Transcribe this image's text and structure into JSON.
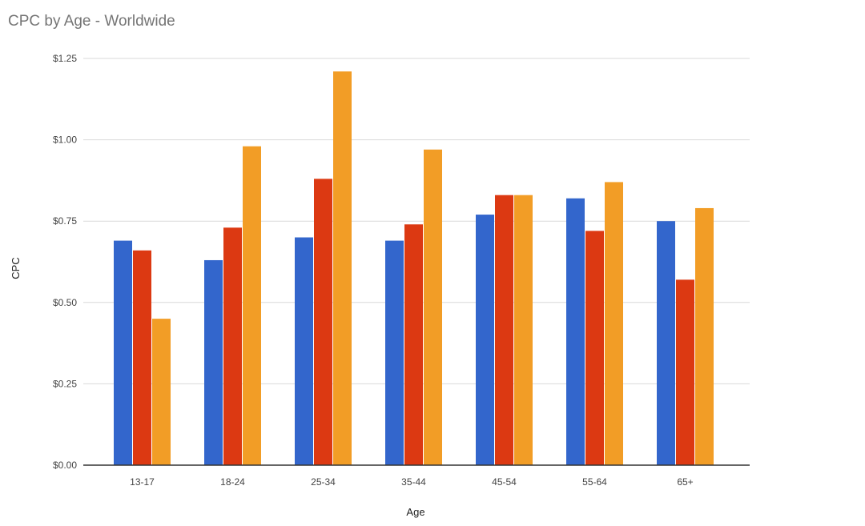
{
  "chart_data": {
    "type": "bar",
    "title": "CPC by Age - Worldwide",
    "xlabel": "Age",
    "ylabel": "CPC",
    "categories": [
      "13-17",
      "18-24",
      "25-34",
      "35-44",
      "45-54",
      "55-64",
      "65+"
    ],
    "y_ticks": [
      "$0.00",
      "$0.25",
      "$0.50",
      "$0.75",
      "$1.00",
      "$1.25"
    ],
    "ylim": [
      0,
      1.25
    ],
    "grid": true,
    "legend": "none",
    "series": [
      {
        "color": "#3366CC",
        "values": [
          0.69,
          0.63,
          0.7,
          0.69,
          0.77,
          0.82,
          0.75
        ]
      },
      {
        "color": "#DC3912",
        "values": [
          0.66,
          0.73,
          0.88,
          0.74,
          0.83,
          0.72,
          0.57
        ]
      },
      {
        "color": "#F29D26",
        "values": [
          0.45,
          0.98,
          1.21,
          0.97,
          0.83,
          0.87,
          0.79
        ]
      }
    ]
  }
}
